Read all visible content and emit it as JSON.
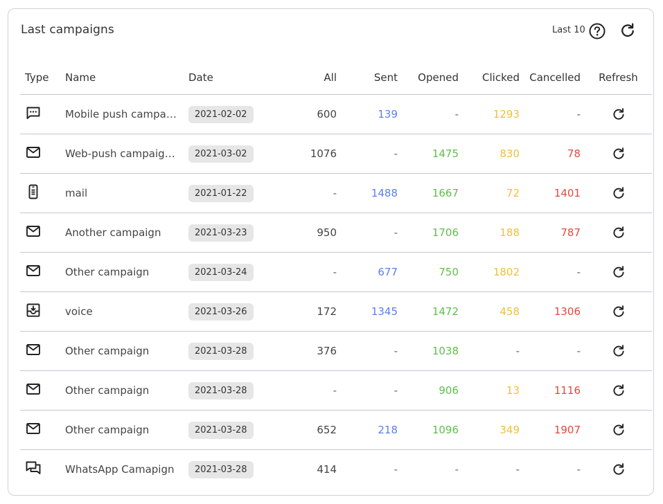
{
  "card": {
    "title": "Last campaigns",
    "range_label": "Last 10"
  },
  "columns": {
    "type": "Type",
    "name": "Name",
    "date": "Date",
    "all": "All",
    "sent": "Sent",
    "opened": "Opened",
    "clicked": "Clicked",
    "cancelled": "Cancelled",
    "refresh": "Refresh"
  },
  "colors": {
    "sent": "#5b7fe8",
    "opened": "#5fbf4a",
    "clicked": "#efbf3a",
    "cancelled": "#e5483a"
  },
  "rows": [
    {
      "type_icon": "sms-icon",
      "name": "Mobile push campai...",
      "date": "2021-02-02",
      "all": "600",
      "sent": "139",
      "opened": "-",
      "clicked": "1293",
      "cancelled": "-"
    },
    {
      "type_icon": "email-icon",
      "name": "Web-push campaign...",
      "date": "2021-03-02",
      "all": "1076",
      "sent": "-",
      "opened": "1475",
      "clicked": "830",
      "cancelled": "78"
    },
    {
      "type_icon": "mobile-icon",
      "name": "mail",
      "date": "2021-01-22",
      "all": "-",
      "sent": "1488",
      "opened": "1667",
      "clicked": "72",
      "cancelled": "1401"
    },
    {
      "type_icon": "email-icon",
      "name": "Another campaign",
      "date": "2021-03-23",
      "all": "950",
      "sent": "-",
      "opened": "1706",
      "clicked": "188",
      "cancelled": "787"
    },
    {
      "type_icon": "email-icon",
      "name": "Other campaign",
      "date": "2021-03-24",
      "all": "-",
      "sent": "677",
      "opened": "750",
      "clicked": "1802",
      "cancelled": "-"
    },
    {
      "type_icon": "voicemail-icon",
      "name": "voice",
      "date": "2021-03-26",
      "all": "172",
      "sent": "1345",
      "opened": "1472",
      "clicked": "458",
      "cancelled": "1306"
    },
    {
      "type_icon": "email-icon",
      "name": "Other campaign",
      "date": "2021-03-28",
      "all": "376",
      "sent": "-",
      "opened": "1038",
      "clicked": "-",
      "cancelled": "-"
    },
    {
      "type_icon": "email-icon",
      "name": "Other campaign",
      "date": "2021-03-28",
      "all": "-",
      "sent": "-",
      "opened": "906",
      "clicked": "13",
      "cancelled": "1116"
    },
    {
      "type_icon": "email-icon",
      "name": "Other campaign",
      "date": "2021-03-28",
      "all": "652",
      "sent": "218",
      "opened": "1096",
      "clicked": "349",
      "cancelled": "1907"
    },
    {
      "type_icon": "chat-icon",
      "name": "WhatsApp Camapign",
      "date": "2021-03-28",
      "all": "414",
      "sent": "-",
      "opened": "-",
      "clicked": "-",
      "cancelled": "-"
    }
  ]
}
